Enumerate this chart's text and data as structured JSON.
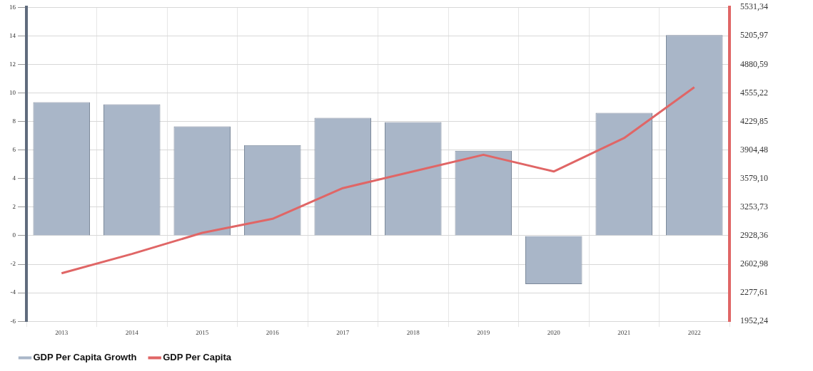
{
  "chart_data": {
    "type": "bar",
    "categories": [
      "2013",
      "2014",
      "2015",
      "2016",
      "2017",
      "2018",
      "2019",
      "2020",
      "2021",
      "2022"
    ],
    "series": [
      {
        "name": "GDP Per Capita Growth",
        "color": "#a9b6c8",
        "values": [
          9.35,
          9.2,
          7.65,
          6.35,
          8.25,
          7.95,
          5.95,
          -3.4,
          8.6,
          14.05
        ]
      },
      {
        "name": "GDP Per Capita",
        "type": "line",
        "axis": "y2",
        "color": "#e06666",
        "values": [
          2500,
          2720,
          2960,
          3120,
          3470,
          3660,
          3850,
          3660,
          4040,
          4620
        ]
      }
    ],
    "ylim": [
      -6,
      16
    ],
    "yticks": [
      -6,
      -4,
      -2,
      0,
      2,
      4,
      6,
      8,
      10,
      12,
      14,
      16
    ],
    "y2lim": [
      1952.24,
      5531.34
    ],
    "y2ticks": [
      {
        "value": 1952.24,
        "label": "1952,24"
      },
      {
        "value": 2277.61,
        "label": "2277,61"
      },
      {
        "value": 2602.98,
        "label": "2602,98"
      },
      {
        "value": 2928.36,
        "label": "2928,36"
      },
      {
        "value": 3253.73,
        "label": "3253,73"
      },
      {
        "value": 3579.1,
        "label": "3579,10"
      },
      {
        "value": 3904.48,
        "label": "3904,48"
      },
      {
        "value": 4229.85,
        "label": "4229,85"
      },
      {
        "value": 4555.22,
        "label": "4555,22"
      },
      {
        "value": 4880.59,
        "label": "4880,59"
      },
      {
        "value": 5205.97,
        "label": "5205,97"
      },
      {
        "value": 5531.34,
        "label": "5531,34"
      }
    ],
    "grid": true,
    "legend": "bottom left"
  }
}
